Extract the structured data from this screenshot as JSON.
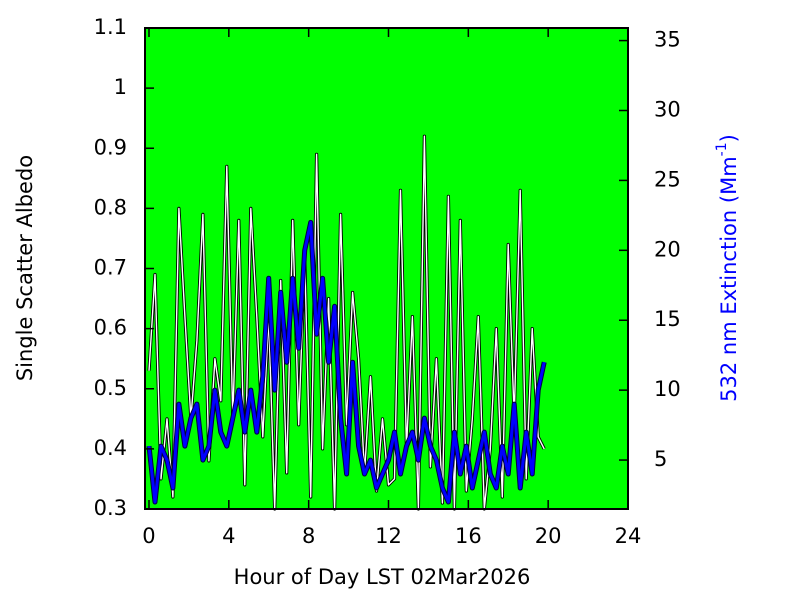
{
  "chart_data": {
    "type": "line",
    "xlabel": "Hour of Day LST 02Mar2026",
    "ylabel": "Single Scatter Albedo",
    "y2label": [
      "532 nm Extinction (Mm",
      "-1",
      ")"
    ],
    "background": "#00ff00",
    "xlim": [
      -0.2,
      24
    ],
    "xticks": [
      0,
      4,
      8,
      12,
      16,
      20,
      24
    ],
    "ylim": [
      0.3,
      1.1
    ],
    "yticks": [
      0.3,
      0.4,
      0.5,
      0.6,
      0.7,
      0.8,
      0.9,
      1,
      1.1
    ],
    "y2lim": [
      1.5,
      35.9
    ],
    "y2ticks": [
      5,
      10,
      15,
      20,
      25,
      30,
      35
    ],
    "x": [
      0,
      0.3,
      0.6,
      0.9,
      1.2,
      1.5,
      1.8,
      2.1,
      2.4,
      2.7,
      3,
      3.3,
      3.6,
      3.9,
      4.2,
      4.5,
      4.8,
      5.1,
      5.4,
      5.7,
      6,
      6.3,
      6.6,
      6.9,
      7.2,
      7.5,
      7.8,
      8.1,
      8.4,
      8.7,
      9,
      9.3,
      9.6,
      9.9,
      10.2,
      10.5,
      10.8,
      11.1,
      11.4,
      11.7,
      12,
      12.3,
      12.6,
      12.9,
      13.2,
      13.5,
      13.8,
      14.1,
      14.4,
      14.7,
      15,
      15.3,
      15.6,
      15.9,
      16.2,
      16.5,
      16.8,
      17.1,
      17.4,
      17.7,
      18,
      18.3,
      18.6,
      18.9,
      19.2,
      19.5,
      19.8
    ],
    "series": [
      {
        "color": "#ffffff",
        "values": [
          0.53,
          0.69,
          0.35,
          0.45,
          0.32,
          0.8,
          0.62,
          0.45,
          0.58,
          0.79,
          0.38,
          0.55,
          0.48,
          0.87,
          0.45,
          0.78,
          0.34,
          0.8,
          0.62,
          0.42,
          0.62,
          0.3,
          0.68,
          0.36,
          0.78,
          0.44,
          0.72,
          0.32,
          0.89,
          0.4,
          0.65,
          0.3,
          0.79,
          0.44,
          0.66,
          0.55,
          0.36,
          0.52,
          0.33,
          0.45,
          0.34,
          0.35,
          0.83,
          0.4,
          0.62,
          0.3,
          0.92,
          0.37,
          0.55,
          0.31,
          0.82,
          0.3,
          0.78,
          0.33,
          0.45,
          0.62,
          0.3,
          0.4,
          0.6,
          0.32,
          0.74,
          0.45,
          0.83,
          0.35,
          0.6,
          0.42,
          0.4
        ]
      },
      {
        "color": "#0000ff",
        "axis": "y2",
        "values": [
          6,
          2,
          6,
          5,
          3,
          9,
          6,
          8,
          9,
          5,
          6,
          10,
          7,
          6,
          8,
          10,
          7,
          10,
          7,
          11,
          18,
          10,
          17,
          12,
          18,
          13,
          20,
          22,
          14,
          18,
          12,
          16,
          8,
          4,
          12,
          6,
          4,
          5,
          3,
          4,
          5,
          7,
          4,
          6,
          7,
          5,
          8,
          6,
          5,
          3,
          2,
          7,
          4,
          6,
          3,
          5,
          7,
          4,
          3,
          6,
          4,
          9,
          3,
          7,
          4,
          10,
          12
        ]
      }
    ]
  }
}
